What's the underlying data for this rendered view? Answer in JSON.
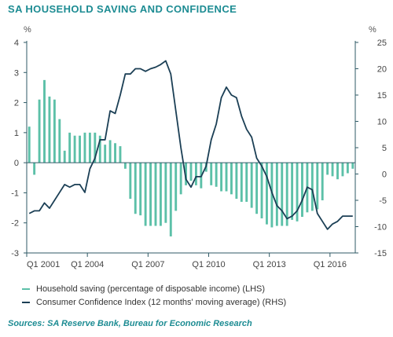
{
  "title": "SA HOUSEHOLD SAVING AND CONFIDENCE",
  "source": "Sources: SA Reserve Bank, Bureau for Economic Research",
  "chart_data": {
    "type": "bar+line",
    "y_left": {
      "unit": "%",
      "ylim": [
        -3,
        4
      ],
      "ticks": [
        4,
        3,
        2,
        1,
        0,
        -1,
        -2,
        -3
      ]
    },
    "y_right": {
      "unit": "%",
      "ylim": [
        -15,
        25
      ],
      "ticks": [
        25,
        20,
        15,
        10,
        5,
        0,
        -5,
        -10,
        -15
      ]
    },
    "x_tick_labels": [
      "Q1 2001",
      "Q1 2004",
      "Q1 2007",
      "Q1 2010",
      "Q1 2013",
      "Q1 2016"
    ],
    "quarters": [
      "2001Q1",
      "2001Q2",
      "2001Q3",
      "2001Q4",
      "2002Q1",
      "2002Q2",
      "2002Q3",
      "2002Q4",
      "2003Q1",
      "2003Q2",
      "2003Q3",
      "2003Q4",
      "2004Q1",
      "2004Q2",
      "2004Q3",
      "2004Q4",
      "2005Q1",
      "2005Q2",
      "2005Q3",
      "2005Q4",
      "2006Q1",
      "2006Q2",
      "2006Q3",
      "2006Q4",
      "2007Q1",
      "2007Q2",
      "2007Q3",
      "2007Q4",
      "2008Q1",
      "2008Q2",
      "2008Q3",
      "2008Q4",
      "2009Q1",
      "2009Q2",
      "2009Q3",
      "2009Q4",
      "2010Q1",
      "2010Q2",
      "2010Q3",
      "2010Q4",
      "2011Q1",
      "2011Q2",
      "2011Q3",
      "2011Q4",
      "2012Q1",
      "2012Q2",
      "2012Q3",
      "2012Q4",
      "2013Q1",
      "2013Q2",
      "2013Q3",
      "2013Q4",
      "2014Q1",
      "2014Q2",
      "2014Q3",
      "2014Q4",
      "2015Q1",
      "2015Q2",
      "2015Q3",
      "2015Q4",
      "2016Q1",
      "2016Q2",
      "2016Q3",
      "2016Q4",
      "2017Q1"
    ],
    "series": [
      {
        "name": "Household saving (percentage of disposable income) (LHS)",
        "type": "bar",
        "axis": "left",
        "color": "#5cc0a8",
        "values": [
          1.2,
          -0.4,
          2.1,
          2.75,
          2.2,
          2.1,
          1.45,
          0.4,
          1.0,
          0.9,
          0.9,
          1.0,
          1.0,
          1.0,
          0.9,
          0.6,
          0.75,
          0.65,
          0.55,
          -0.2,
          -1.2,
          -1.7,
          -1.75,
          -2.1,
          -2.1,
          -2.1,
          -2.1,
          -2.0,
          -2.45,
          -1.6,
          -1.05,
          -0.75,
          -0.6,
          -0.75,
          -0.85,
          -0.3,
          -0.75,
          -0.8,
          -0.95,
          -0.95,
          -1.05,
          -1.2,
          -1.3,
          -1.3,
          -1.5,
          -1.7,
          -1.85,
          -2.05,
          -2.15,
          -2.1,
          -2.1,
          -2.1,
          -1.9,
          -1.95,
          -1.8,
          -1.65,
          -1.6,
          -1.55,
          -1.25,
          -0.4,
          -0.45,
          -0.55,
          -0.45,
          -0.35,
          -0.2
        ]
      },
      {
        "name": "Consumer Confidence Index (12 months' moving average) (RHS)",
        "type": "line",
        "axis": "right",
        "color": "#1b3f55",
        "values": [
          -7.5,
          -7,
          -7,
          -5.5,
          -6.5,
          -5,
          -3.5,
          -2,
          -2.5,
          -2,
          -2,
          -3.5,
          1,
          3,
          6.5,
          6.5,
          12,
          11.5,
          15,
          19,
          19,
          20,
          20,
          19.5,
          20,
          20.3,
          20.8,
          21.5,
          19,
          12,
          5,
          -1,
          -2.5,
          -0.5,
          -0.5,
          1.5,
          6.5,
          9.5,
          14.5,
          16.5,
          15,
          14.5,
          11,
          8.5,
          7,
          3,
          1.5,
          -0.5,
          -3.5,
          -6,
          -7,
          -8.5,
          -8,
          -7,
          -5,
          -2.5,
          -3,
          -7.5,
          -9,
          -10.5,
          -9.5,
          -9,
          -8,
          -8,
          -8
        ]
      }
    ]
  }
}
